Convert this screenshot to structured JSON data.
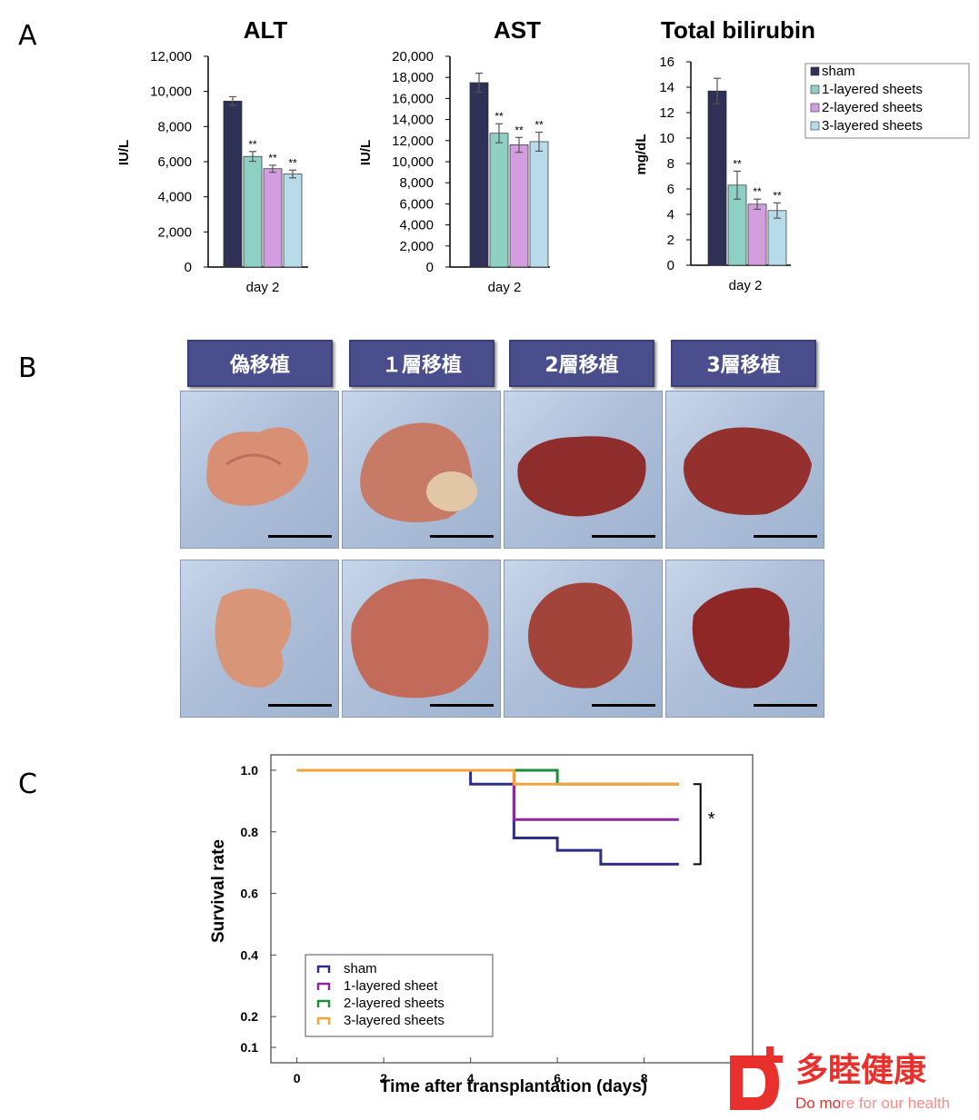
{
  "panels": {
    "a": "A",
    "b": "B",
    "c": "C"
  },
  "bar_legend": [
    "sham",
    "1-layered sheets",
    "2-layered sheets",
    "3-layered sheets"
  ],
  "colors": {
    "sham": "#2f3157",
    "one_layer": "#8fd0c5",
    "two_layer": "#d39ee0",
    "three_layer": "#b7dbe8",
    "km_sham": "#2e2e84",
    "km_one": "#8a2a9c",
    "km_two": "#1e8e3e",
    "km_three": "#f5a33a",
    "label_box": "#4a4e8c",
    "logo_red": "#e8302c"
  },
  "photo_labels": [
    "偽移植",
    "１層移植",
    "2層移植",
    "3層移植"
  ],
  "km_axis": {
    "xlabel": "Time after transplantation (days)",
    "ylabel": "Survival rate"
  },
  "km_legend": [
    "sham",
    "1-layered sheet",
    "2-layered sheets",
    "3-layered sheets"
  ],
  "significance": {
    "mark": "**",
    "km_mark": "*"
  },
  "logo": {
    "brand": "多睦健康",
    "slogan_strong": "Do mo",
    "slogan_rest": "re for our health"
  },
  "chart_data": [
    {
      "type": "bar",
      "title": "ALT",
      "ylabel": "IU/L",
      "xlabel": "day 2",
      "categories": [
        "day 2"
      ],
      "ylim": [
        0,
        12000
      ],
      "yticks": [
        "0",
        "2,000",
        "4,000",
        "6,000",
        "8,000",
        "10,000",
        "12,000"
      ],
      "ytick_values": [
        0,
        2000,
        4000,
        6000,
        8000,
        10000,
        12000
      ],
      "series": [
        {
          "name": "sham",
          "values": [
            9450
          ],
          "error": [
            250
          ],
          "sig": ""
        },
        {
          "name": "1-layered sheets",
          "values": [
            6300
          ],
          "error": [
            280
          ],
          "sig": "**"
        },
        {
          "name": "2-layered sheets",
          "values": [
            5600
          ],
          "error": [
            200
          ],
          "sig": "**"
        },
        {
          "name": "3-layered sheets",
          "values": [
            5300
          ],
          "error": [
            220
          ],
          "sig": "**"
        }
      ]
    },
    {
      "type": "bar",
      "title": "AST",
      "ylabel": "IU/L",
      "xlabel": "day 2",
      "categories": [
        "day 2"
      ],
      "ylim": [
        0,
        20000
      ],
      "yticks": [
        "0",
        "2,000",
        "4,000",
        "6,000",
        "8,000",
        "10,000",
        "12,000",
        "14,000",
        "16,000",
        "18,000",
        "20,000"
      ],
      "ytick_values": [
        0,
        2000,
        4000,
        6000,
        8000,
        10000,
        12000,
        14000,
        16000,
        18000,
        20000
      ],
      "series": [
        {
          "name": "sham",
          "values": [
            17500
          ],
          "error": [
            900
          ],
          "sig": ""
        },
        {
          "name": "1-layered sheets",
          "values": [
            12700
          ],
          "error": [
            900
          ],
          "sig": "**"
        },
        {
          "name": "2-layered sheets",
          "values": [
            11600
          ],
          "error": [
            700
          ],
          "sig": "**"
        },
        {
          "name": "3-layered sheets",
          "values": [
            11900
          ],
          "error": [
            900
          ],
          "sig": "**"
        }
      ]
    },
    {
      "type": "bar",
      "title": "Total bilirubin",
      "ylabel": "mg/dL",
      "xlabel": "day 2",
      "categories": [
        "day 2"
      ],
      "ylim": [
        0,
        16
      ],
      "yticks": [
        "0",
        "2",
        "4",
        "6",
        "8",
        "10",
        "12",
        "14",
        "16"
      ],
      "ytick_values": [
        0,
        2,
        4,
        6,
        8,
        10,
        12,
        14,
        16
      ],
      "series": [
        {
          "name": "sham",
          "values": [
            13.7
          ],
          "error": [
            1.0
          ],
          "sig": ""
        },
        {
          "name": "1-layered sheets",
          "values": [
            6.3
          ],
          "error": [
            1.1
          ],
          "sig": "**"
        },
        {
          "name": "2-layered sheets",
          "values": [
            4.8
          ],
          "error": [
            0.4
          ],
          "sig": "**"
        },
        {
          "name": "3-layered sheets",
          "values": [
            4.3
          ],
          "error": [
            0.6
          ],
          "sig": "**"
        }
      ]
    },
    {
      "type": "line",
      "title": "",
      "xlabel": "Time after transplantation (days)",
      "ylabel": "Survival rate",
      "xlim": [
        -0.6,
        10.5
      ],
      "xticks": [
        "0",
        "2",
        "4",
        "6",
        "8"
      ],
      "xtick_values": [
        0,
        2,
        4,
        6,
        8
      ],
      "ylim": [
        0.05,
        1.05
      ],
      "yticks": [
        "0.1",
        "0.2",
        "0.4",
        "0.6",
        "0.8",
        "1.0"
      ],
      "ytick_values": [
        0.1,
        0.2,
        0.4,
        0.6,
        0.8,
        1.0
      ],
      "series": [
        {
          "name": "sham",
          "x": [
            0,
            4,
            5,
            6,
            7,
            8.8
          ],
          "y": [
            1.0,
            0.955,
            0.78,
            0.74,
            0.695,
            0.695
          ]
        },
        {
          "name": "1-layered sheet",
          "x": [
            0,
            5,
            8.8
          ],
          "y": [
            1.0,
            0.84,
            0.84
          ]
        },
        {
          "name": "2-layered sheets",
          "x": [
            0,
            6,
            8.8
          ],
          "y": [
            1.0,
            0.955,
            0.955
          ]
        },
        {
          "name": "3-layered sheets",
          "x": [
            0,
            5,
            8.8
          ],
          "y": [
            1.0,
            0.955,
            0.955
          ]
        }
      ]
    }
  ]
}
